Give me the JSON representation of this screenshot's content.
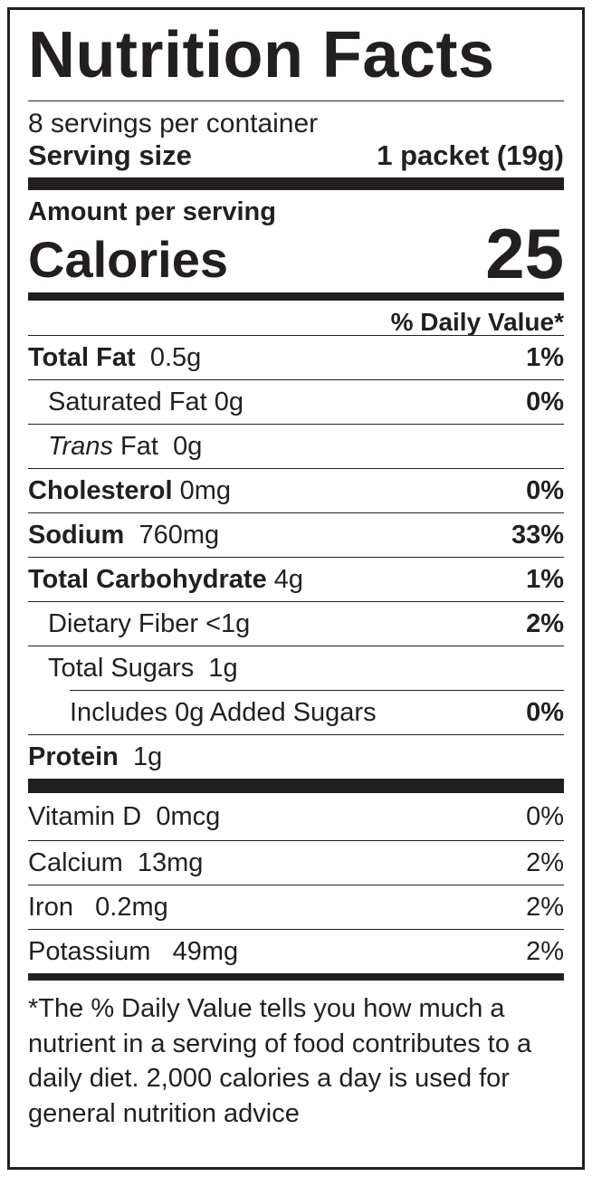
{
  "label": {
    "title": "Nutrition Facts",
    "servings_per_container": "8 servings per container",
    "serving_size_label": "Serving size",
    "serving_size_value": "1 packet (19g)",
    "amount_per_serving": "Amount per serving",
    "calories_label": "Calories",
    "calories_value": "25",
    "daily_value_header": "% Daily Value*",
    "nutrients": [
      {
        "name": "Total Fat",
        "amount": "0.5g",
        "dv": "1%"
      },
      {
        "name": "Saturated Fat",
        "amount": "0g",
        "dv": "0%"
      },
      {
        "name_italic": "Trans",
        "name": "Fat",
        "amount": "0g",
        "dv": ""
      },
      {
        "name": "Cholesterol",
        "amount": "0mg",
        "dv": "0%"
      },
      {
        "name": "Sodium",
        "amount": "760mg",
        "dv": "33%"
      },
      {
        "name": "Total Carbohydrate",
        "amount": "4g",
        "dv": "1%"
      },
      {
        "name": "Dietary Fiber",
        "amount": "<1g",
        "dv": "2%"
      },
      {
        "name": "Total Sugars",
        "amount": "1g",
        "dv": ""
      },
      {
        "name": "Includes 0g Added Sugars",
        "amount": "",
        "dv": "0%"
      },
      {
        "name": "Protein",
        "amount": "1g",
        "dv": ""
      }
    ],
    "vitamins": [
      {
        "name": "Vitamin D",
        "amount": "0mcg",
        "dv": "0%"
      },
      {
        "name": "Calcium",
        "amount": "13mg",
        "dv": "2%"
      },
      {
        "name": "Iron",
        "amount": "0.2mg",
        "dv": "2%"
      },
      {
        "name": "Potassium",
        "amount": "49mg",
        "dv": "2%"
      }
    ],
    "footnote": "*The % Daily Value tells you how much a nutrient in a serving of food contributes to a daily diet. 2,000 calories a day is used for general nutrition advice"
  }
}
